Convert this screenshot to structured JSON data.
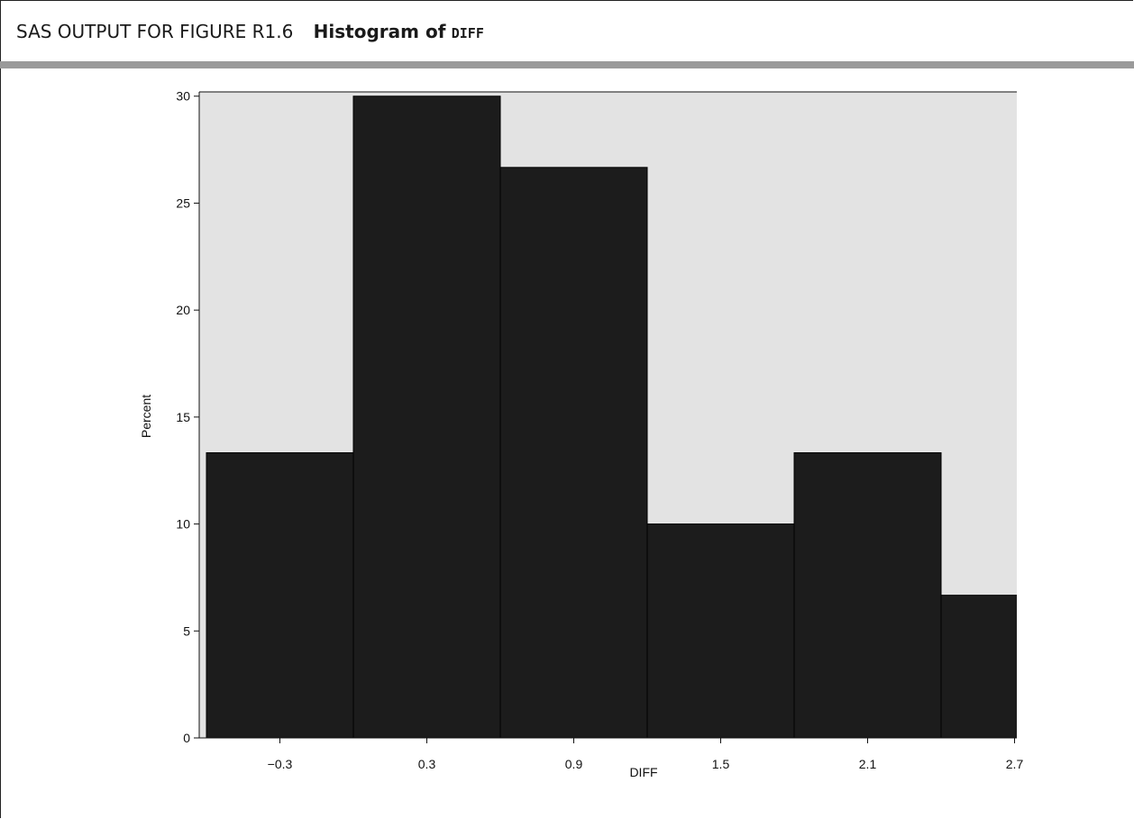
{
  "figure": {
    "label": "SAS OUTPUT FOR FIGURE R1.6",
    "title_prefix": "Histogram of",
    "title_variable": "DIFF"
  },
  "colors": {
    "plot_background": "#e3e3e3",
    "bar_fill": "#1c1c1c",
    "rule": "#9a9a9a"
  },
  "chart_data": {
    "type": "bar",
    "title": "Histogram of DIFF",
    "xlabel": "DIFF",
    "ylabel": "Percent",
    "categories": [
      "-0.3",
      "0.3",
      "0.9",
      "1.5",
      "2.1",
      "2.7"
    ],
    "tick_labels": [
      "−0.3",
      "0.3",
      "0.9",
      "1.5",
      "2.1",
      "2.7"
    ],
    "values": [
      13.33,
      30.0,
      26.67,
      10.0,
      13.33,
      6.67
    ],
    "bin_width": 0.6,
    "yticks": [
      0,
      5,
      10,
      15,
      20,
      25,
      30
    ],
    "ylim": [
      0,
      30
    ],
    "grid": false,
    "legend": "none"
  }
}
